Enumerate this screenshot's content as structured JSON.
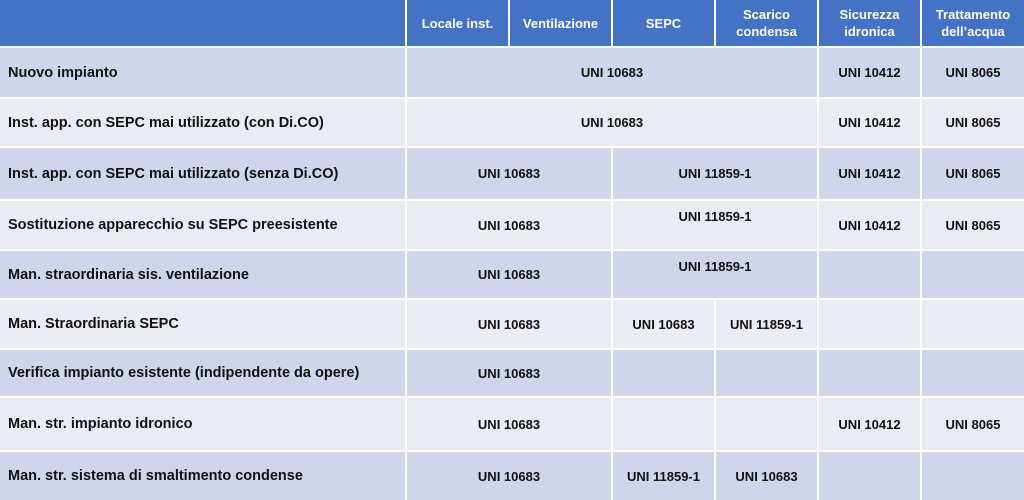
{
  "header": {
    "columns": [
      "Locale inst.",
      "Ventilazione",
      "SEPC",
      "Scarico condensa",
      "Sicurezza idronica",
      "Trattamento dell’acqua"
    ],
    "color": "#4472C4"
  },
  "row_colors": {
    "dark": "#CFD5EA",
    "light": "#E9EBF5"
  },
  "rows": [
    {
      "label": "Nuovo impianto",
      "cells": [
        "UNI 10683",
        "UNI 10412",
        "UNI 8065"
      ]
    },
    {
      "label": "Inst. app. con SEPC mai utilizzato (con Di.CO)",
      "cells": [
        "UNI 10683",
        "UNI 10412",
        "UNI 8065"
      ]
    },
    {
      "label": "Inst. app. con SEPC mai utilizzato (senza Di.CO)",
      "cells": [
        "UNI 10683",
        "UNI 11859-1",
        "UNI 10412",
        "UNI 8065"
      ]
    },
    {
      "label": "Sostituzione apparecchio su SEPC preesistente",
      "cells": [
        "UNI 10683",
        "UNI 11859-1",
        "UNI 10412",
        "UNI 8065"
      ]
    },
    {
      "label": "Man. straordinaria sis. ventilazione",
      "cells": [
        "UNI 10683",
        "UNI 11859-1",
        "",
        ""
      ]
    },
    {
      "label": "Man. Straordinaria SEPC",
      "cells": [
        "UNI 10683",
        "UNI 10683",
        "UNI 11859-1",
        "",
        ""
      ]
    },
    {
      "label": "Verifica impianto esistente (indipendente da opere)",
      "cells": [
        "UNI 10683",
        "",
        "",
        "",
        ""
      ]
    },
    {
      "label": "Man. str. impianto idronico",
      "cells": [
        "UNI 10683",
        "",
        "",
        "UNI 10412",
        "UNI 8065"
      ]
    },
    {
      "label": "Man. str. sistema di smaltimento condense",
      "cells": [
        "UNI 10683",
        "UNI 11859-1",
        "UNI 10683",
        "",
        ""
      ]
    }
  ]
}
